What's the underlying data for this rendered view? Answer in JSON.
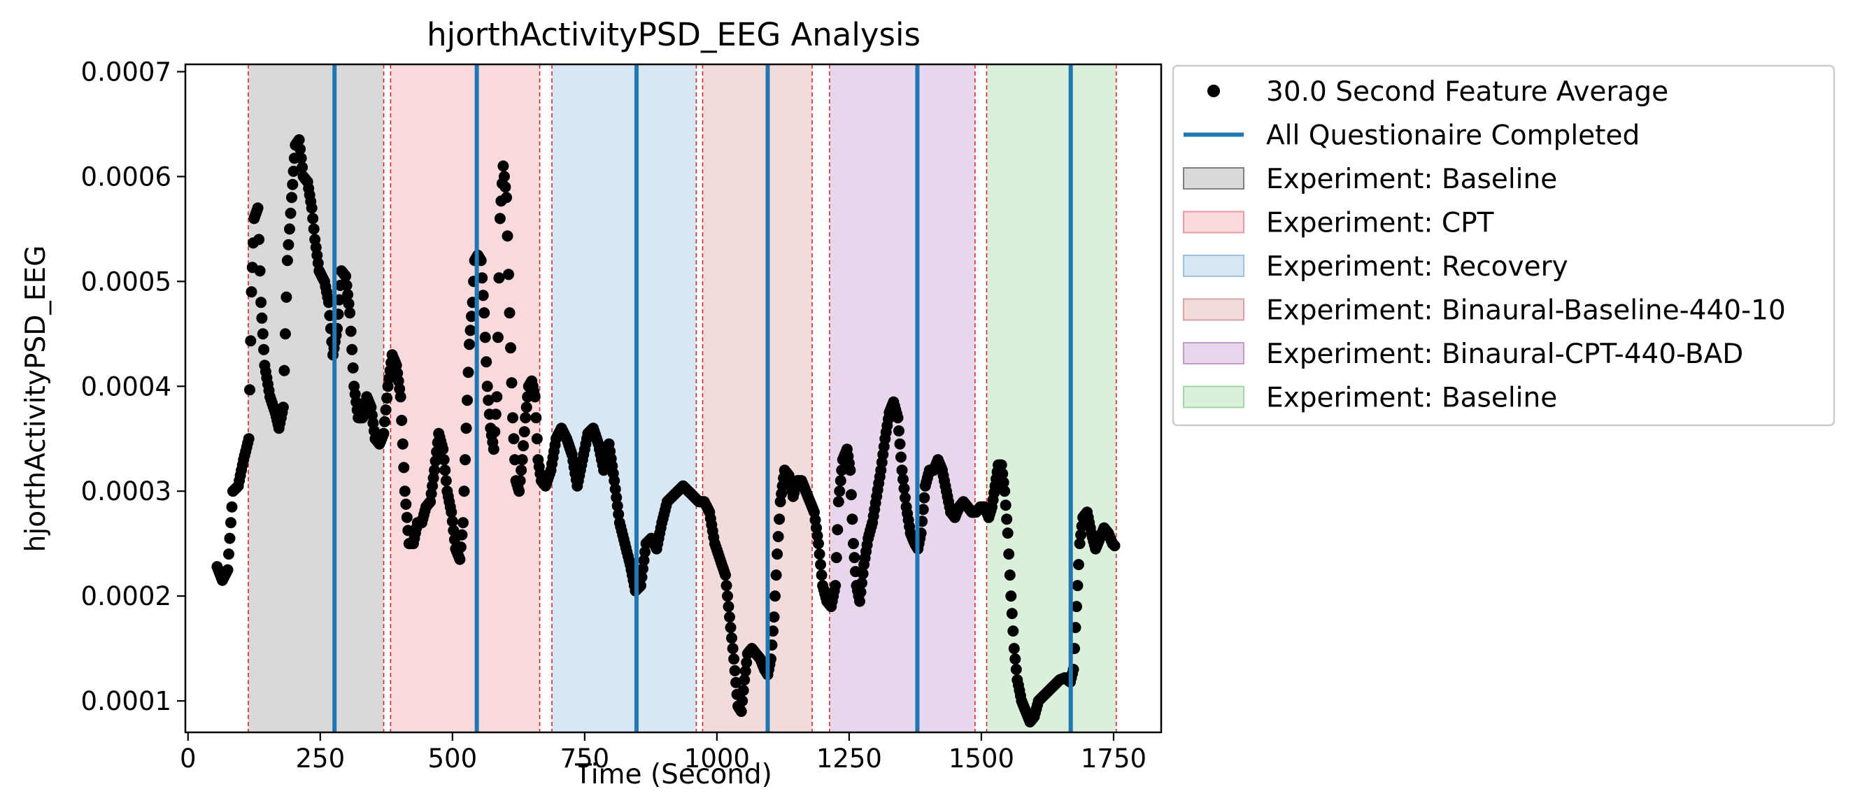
{
  "chart_data": {
    "type": "scatter",
    "title": "hjorthActivityPSD_EEG Analysis",
    "xlabel": "Time (Second)",
    "ylabel": "hjorthActivityPSD_EEG",
    "xlim": [
      -5,
      1840
    ],
    "ylim": [
      7e-05,
      0.000707
    ],
    "xticks": [
      {
        "value": 0,
        "label": "0"
      },
      {
        "value": 250,
        "label": "250"
      },
      {
        "value": 500,
        "label": "500"
      },
      {
        "value": 750,
        "label": "750"
      },
      {
        "value": 1000,
        "label": "1000"
      },
      {
        "value": 1250,
        "label": "1250"
      },
      {
        "value": 1500,
        "label": "1500"
      },
      {
        "value": 1750,
        "label": "1750"
      }
    ],
    "yticks": [
      {
        "value": 0.0001,
        "label": "0.0001"
      },
      {
        "value": 0.0002,
        "label": "0.0002"
      },
      {
        "value": 0.0003,
        "label": "0.0003"
      },
      {
        "value": 0.0004,
        "label": "0.0004"
      },
      {
        "value": 0.0005,
        "label": "0.0005"
      },
      {
        "value": 0.0006,
        "label": "0.0006"
      },
      {
        "value": 0.0007,
        "label": "0.0007"
      }
    ],
    "grid": false,
    "legend_position": "outside-right",
    "spans": [
      {
        "name": "Experiment: Baseline",
        "start": 114,
        "end": 370,
        "color": "#bfbfbf",
        "border": "#808080"
      },
      {
        "name": "Experiment: CPT",
        "start": 383,
        "end": 665,
        "color": "#f4c2c6",
        "border": "#e89aa0"
      },
      {
        "name": "Experiment: Recovery",
        "start": 688,
        "end": 961,
        "color": "#bed7ec",
        "border": "#9dc1e0"
      },
      {
        "name": "Experiment: Binaural-Baseline-440-10",
        "start": 973,
        "end": 1180,
        "color": "#e9c3c3",
        "border": "#d9a1a1"
      },
      {
        "name": "Experiment: Binaural-CPT-440-BAD",
        "start": 1213,
        "end": 1488,
        "color": "#d8bcdf",
        "border": "#c39ccd"
      },
      {
        "name": "Experiment: Baseline",
        "start": 1510,
        "end": 1755,
        "color": "#c3e6c3",
        "border": "#a1d5a1"
      }
    ],
    "boundary_lines": [
      114,
      370,
      383,
      665,
      688,
      961,
      973,
      1180,
      1213,
      1488,
      1510,
      1755
    ],
    "boundary_color": "#d62728",
    "questionnaire_series": {
      "name": "All Questionaire Completed",
      "color": "#1f77b4",
      "x": [
        277,
        546,
        848,
        1096,
        1379,
        1669
      ]
    },
    "feature_series": {
      "name": "30.0 Second Feature Average",
      "color": "#000000",
      "keypoints": [
        [
          55,
          0.000228
        ],
        [
          65,
          0.000215
        ],
        [
          75,
          0.000225
        ],
        [
          85,
          0.0003
        ],
        [
          95,
          0.000305
        ],
        [
          105,
          0.00033
        ],
        [
          115,
          0.00035
        ],
        [
          120,
          0.00049
        ],
        [
          125,
          0.00056
        ],
        [
          132,
          0.00057
        ],
        [
          138,
          0.00048
        ],
        [
          145,
          0.00042
        ],
        [
          155,
          0.00039
        ],
        [
          165,
          0.000375
        ],
        [
          172,
          0.00036
        ],
        [
          180,
          0.00038
        ],
        [
          188,
          0.00052
        ],
        [
          196,
          0.00058
        ],
        [
          203,
          0.00063
        ],
        [
          210,
          0.000635
        ],
        [
          218,
          0.0006
        ],
        [
          226,
          0.000595
        ],
        [
          234,
          0.00057
        ],
        [
          240,
          0.00054
        ],
        [
          248,
          0.00051
        ],
        [
          258,
          0.0005
        ],
        [
          266,
          0.00048
        ],
        [
          274,
          0.00043
        ],
        [
          282,
          0.000455
        ],
        [
          290,
          0.00051
        ],
        [
          298,
          0.000505
        ],
        [
          306,
          0.00047
        ],
        [
          314,
          0.0004
        ],
        [
          322,
          0.00037
        ],
        [
          330,
          0.00037
        ],
        [
          338,
          0.00039
        ],
        [
          346,
          0.00038
        ],
        [
          354,
          0.00035
        ],
        [
          362,
          0.000345
        ],
        [
          370,
          0.000355
        ],
        [
          378,
          0.0004
        ],
        [
          386,
          0.00043
        ],
        [
          394,
          0.00042
        ],
        [
          402,
          0.00039
        ],
        [
          410,
          0.0003
        ],
        [
          418,
          0.00025
        ],
        [
          426,
          0.00025
        ],
        [
          434,
          0.00027
        ],
        [
          442,
          0.00027
        ],
        [
          450,
          0.000285
        ],
        [
          458,
          0.00029
        ],
        [
          466,
          0.00032
        ],
        [
          474,
          0.000355
        ],
        [
          482,
          0.00034
        ],
        [
          490,
          0.0003
        ],
        [
          498,
          0.00028
        ],
        [
          506,
          0.000245
        ],
        [
          514,
          0.000235
        ],
        [
          520,
          0.00027
        ],
        [
          526,
          0.00036
        ],
        [
          532,
          0.00044
        ],
        [
          538,
          0.00048
        ],
        [
          542,
          0.00052
        ],
        [
          548,
          0.000525
        ],
        [
          554,
          0.00052
        ],
        [
          560,
          0.00047
        ],
        [
          566,
          0.0004
        ],
        [
          572,
          0.00036
        ],
        [
          578,
          0.00034
        ],
        [
          584,
          0.00039
        ],
        [
          590,
          0.00056
        ],
        [
          596,
          0.00061
        ],
        [
          602,
          0.00058
        ],
        [
          608,
          0.00047
        ],
        [
          614,
          0.00037
        ],
        [
          620,
          0.00031
        ],
        [
          626,
          0.0003
        ],
        [
          632,
          0.00033
        ],
        [
          638,
          0.00037
        ],
        [
          644,
          0.0004
        ],
        [
          650,
          0.000405
        ],
        [
          656,
          0.00039
        ],
        [
          662,
          0.00033
        ],
        [
          668,
          0.00031
        ],
        [
          676,
          0.000305
        ],
        [
          686,
          0.00032
        ],
        [
          696,
          0.00035
        ],
        [
          706,
          0.00036
        ],
        [
          716,
          0.00035
        ],
        [
          726,
          0.000335
        ],
        [
          736,
          0.000305
        ],
        [
          746,
          0.00033
        ],
        [
          756,
          0.000355
        ],
        [
          766,
          0.00036
        ],
        [
          776,
          0.000345
        ],
        [
          786,
          0.00032
        ],
        [
          796,
          0.000345
        ],
        [
          806,
          0.00031
        ],
        [
          816,
          0.00027
        ],
        [
          826,
          0.00025
        ],
        [
          836,
          0.00023
        ],
        [
          846,
          0.000205
        ],
        [
          856,
          0.00021
        ],
        [
          866,
          0.00025
        ],
        [
          876,
          0.000255
        ],
        [
          886,
          0.000245
        ],
        [
          896,
          0.00027
        ],
        [
          906,
          0.00029
        ],
        [
          916,
          0.000295
        ],
        [
          926,
          0.0003
        ],
        [
          936,
          0.000305
        ],
        [
          946,
          0.0003
        ],
        [
          956,
          0.000295
        ],
        [
          966,
          0.00029
        ],
        [
          976,
          0.00029
        ],
        [
          986,
          0.00028
        ],
        [
          996,
          0.00025
        ],
        [
          1006,
          0.000235
        ],
        [
          1016,
          0.00022
        ],
        [
          1024,
          0.00018
        ],
        [
          1032,
          0.00014
        ],
        [
          1040,
          9.5e-05
        ],
        [
          1046,
          9e-05
        ],
        [
          1052,
          0.00012
        ],
        [
          1058,
          0.000145
        ],
        [
          1066,
          0.00015
        ],
        [
          1074,
          0.000145
        ],
        [
          1082,
          0.00014
        ],
        [
          1090,
          0.00013
        ],
        [
          1096,
          0.000125
        ],
        [
          1102,
          0.00014
        ],
        [
          1108,
          0.00018
        ],
        [
          1114,
          0.00024
        ],
        [
          1120,
          0.00029
        ],
        [
          1128,
          0.00032
        ],
        [
          1136,
          0.000315
        ],
        [
          1144,
          0.000295
        ],
        [
          1152,
          0.00031
        ],
        [
          1160,
          0.00031
        ],
        [
          1168,
          0.0003
        ],
        [
          1176,
          0.00029
        ],
        [
          1184,
          0.00028
        ],
        [
          1192,
          0.00025
        ],
        [
          1200,
          0.00021
        ],
        [
          1208,
          0.000195
        ],
        [
          1216,
          0.00019
        ],
        [
          1224,
          0.00021
        ],
        [
          1230,
          0.00029
        ],
        [
          1238,
          0.00033
        ],
        [
          1246,
          0.00034
        ],
        [
          1252,
          0.00032
        ],
        [
          1258,
          0.00025
        ],
        [
          1264,
          0.00021
        ],
        [
          1270,
          0.000195
        ],
        [
          1278,
          0.00023
        ],
        [
          1286,
          0.000255
        ],
        [
          1294,
          0.00027
        ],
        [
          1302,
          0.000295
        ],
        [
          1310,
          0.00032
        ],
        [
          1318,
          0.00035
        ],
        [
          1326,
          0.000375
        ],
        [
          1334,
          0.000385
        ],
        [
          1342,
          0.00037
        ],
        [
          1350,
          0.00032
        ],
        [
          1358,
          0.000285
        ],
        [
          1366,
          0.00026
        ],
        [
          1374,
          0.00025
        ],
        [
          1380,
          0.000245
        ],
        [
          1386,
          0.00026
        ],
        [
          1394,
          0.000305
        ],
        [
          1402,
          0.00032
        ],
        [
          1410,
          0.00032
        ],
        [
          1418,
          0.00033
        ],
        [
          1426,
          0.00032
        ],
        [
          1434,
          0.0003
        ],
        [
          1442,
          0.00028
        ],
        [
          1450,
          0.000275
        ],
        [
          1458,
          0.000285
        ],
        [
          1466,
          0.00029
        ],
        [
          1474,
          0.000285
        ],
        [
          1482,
          0.00028
        ],
        [
          1490,
          0.00028
        ],
        [
          1498,
          0.000285
        ],
        [
          1506,
          0.000285
        ],
        [
          1514,
          0.000275
        ],
        [
          1520,
          0.000285
        ],
        [
          1526,
          0.000305
        ],
        [
          1532,
          0.000325
        ],
        [
          1538,
          0.000325
        ],
        [
          1544,
          0.0003
        ],
        [
          1550,
          0.00026
        ],
        [
          1556,
          0.0002
        ],
        [
          1562,
          0.00015
        ],
        [
          1568,
          0.00012
        ],
        [
          1576,
          0.0001
        ],
        [
          1584,
          9e-05
        ],
        [
          1592,
          8e-05
        ],
        [
          1600,
          8.5e-05
        ],
        [
          1608,
          0.0001
        ],
        [
          1618,
          0.000105
        ],
        [
          1628,
          0.00011
        ],
        [
          1638,
          0.000115
        ],
        [
          1648,
          0.00012
        ],
        [
          1658,
          0.000122
        ],
        [
          1668,
          0.000118
        ],
        [
          1674,
          0.00013
        ],
        [
          1680,
          0.00019
        ],
        [
          1686,
          0.00025
        ],
        [
          1692,
          0.000275
        ],
        [
          1700,
          0.00028
        ],
        [
          1708,
          0.00026
        ],
        [
          1716,
          0.000245
        ],
        [
          1724,
          0.000255
        ],
        [
          1732,
          0.000265
        ],
        [
          1740,
          0.00026
        ],
        [
          1748,
          0.00025
        ],
        [
          1752,
          0.000248
        ]
      ]
    },
    "legend": [
      {
        "kind": "marker",
        "label": "30.0 Second Feature Average",
        "color": "#000000"
      },
      {
        "kind": "line",
        "label": "All Questionaire Completed",
        "color": "#1f77b4"
      },
      {
        "kind": "patch",
        "label": "Experiment: Baseline",
        "color": "#bfbfbf",
        "border": "#808080"
      },
      {
        "kind": "patch",
        "label": "Experiment: CPT",
        "color": "#f4c2c6",
        "border": "#e89aa0"
      },
      {
        "kind": "patch",
        "label": "Experiment: Recovery",
        "color": "#bed7ec",
        "border": "#9dc1e0"
      },
      {
        "kind": "patch",
        "label": "Experiment: Binaural-Baseline-440-10",
        "color": "#e9c3c3",
        "border": "#d9a1a1"
      },
      {
        "kind": "patch",
        "label": "Experiment: Binaural-CPT-440-BAD",
        "color": "#d8bcdf",
        "border": "#c39ccd"
      },
      {
        "kind": "patch",
        "label": "Experiment: Baseline",
        "color": "#c3e6c3",
        "border": "#a1d5a1"
      }
    ]
  }
}
